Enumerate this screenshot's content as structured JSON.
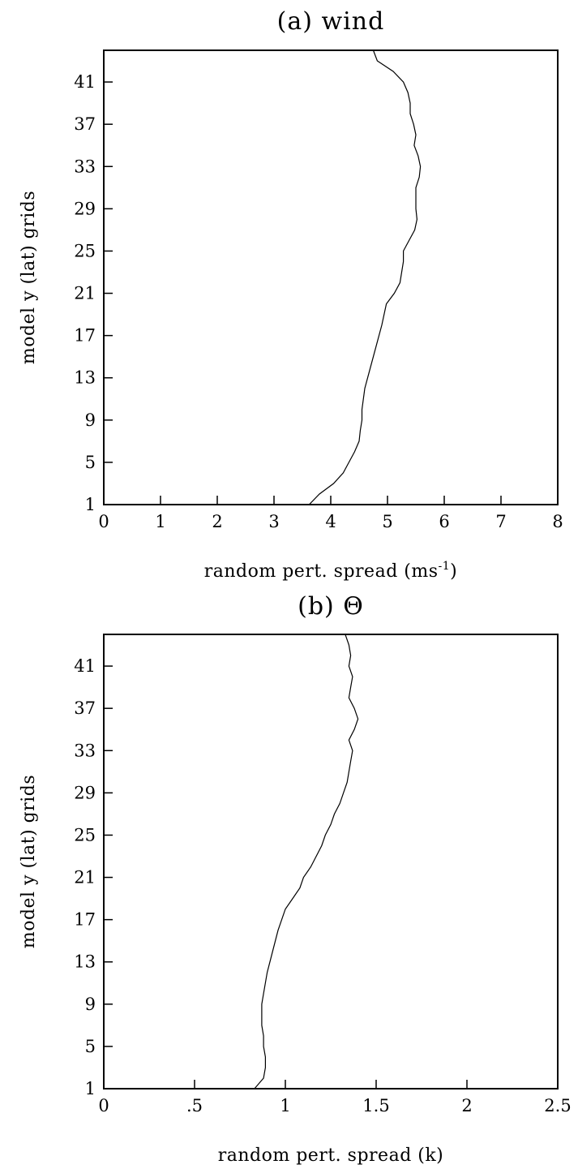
{
  "chart_data": [
    {
      "type": "line",
      "title": "(a) wind",
      "xlabel": "random pert. spread (ms",
      "xlabel_sup": "-1",
      "xlabel_tail": ")",
      "ylabel": "model y (lat) grids",
      "xlim": [
        0,
        8
      ],
      "ylim": [
        1,
        44
      ],
      "x_ticks": [
        0,
        1,
        2,
        3,
        4,
        5,
        6,
        7,
        8
      ],
      "x_tick_labels": [
        "0",
        "1",
        "2",
        "3",
        "4",
        "5",
        "6",
        "7",
        "8"
      ],
      "y_ticks": [
        1,
        5,
        9,
        13,
        17,
        21,
        25,
        29,
        33,
        37,
        41
      ],
      "y_tick_labels": [
        "1",
        "5",
        "9",
        "13",
        "17",
        "21",
        "25",
        "29",
        "33",
        "37",
        "41"
      ],
      "series": [
        {
          "x": [
            3.62,
            3.8,
            4.05,
            4.22,
            4.32,
            4.42,
            4.5,
            4.52,
            4.55,
            4.55,
            4.6,
            4.7,
            4.8,
            4.9,
            4.98,
            5.12,
            5.22,
            5.25,
            5.28,
            5.28,
            5.38,
            5.48,
            5.52,
            5.5,
            5.5,
            5.5,
            5.56,
            5.58,
            5.54,
            5.47,
            5.5,
            5.46,
            5.4,
            5.4,
            5.36,
            5.28,
            5.1,
            4.82,
            4.75
          ],
          "y": [
            1,
            2,
            3,
            4,
            5,
            6,
            7,
            8,
            9,
            10,
            12,
            14,
            16,
            18,
            20,
            21,
            22,
            23,
            24,
            25,
            26,
            27,
            28,
            29,
            30,
            31,
            32,
            33,
            34,
            35,
            36,
            37,
            38,
            39,
            40,
            41,
            42,
            43,
            44
          ]
        }
      ]
    },
    {
      "type": "line",
      "title": "(b) Θ",
      "xlabel": "random pert. spread (k)",
      "xlabel_sup": "",
      "xlabel_tail": "",
      "ylabel": "model y (lat) grids",
      "xlim": [
        0,
        2.5
      ],
      "ylim": [
        1,
        44
      ],
      "x_ticks": [
        0,
        0.5,
        1,
        1.5,
        2,
        2.5
      ],
      "x_tick_labels": [
        "0",
        ".5",
        "1",
        "1.5",
        "2",
        "2.5"
      ],
      "y_ticks": [
        1,
        5,
        9,
        13,
        17,
        21,
        25,
        29,
        33,
        37,
        41
      ],
      "y_tick_labels": [
        "1",
        "5",
        "9",
        "13",
        "17",
        "21",
        "25",
        "29",
        "33",
        "37",
        "41"
      ],
      "series": [
        {
          "x": [
            0.83,
            0.88,
            0.89,
            0.89,
            0.88,
            0.88,
            0.87,
            0.87,
            0.87,
            0.88,
            0.9,
            0.93,
            0.96,
            1.0,
            1.04,
            1.08,
            1.1,
            1.14,
            1.2,
            1.22,
            1.25,
            1.27,
            1.3,
            1.32,
            1.34,
            1.35,
            1.36,
            1.37,
            1.35,
            1.38,
            1.4,
            1.38,
            1.35,
            1.36,
            1.37,
            1.35,
            1.36,
            1.35,
            1.33,
            1.28,
            1.22
          ],
          "y": [
            1,
            2,
            3,
            4,
            5,
            6,
            7,
            8,
            9,
            10,
            12,
            14,
            16,
            18,
            19,
            20,
            21,
            22,
            24,
            25,
            26,
            27,
            28,
            29,
            30,
            31,
            32,
            33,
            34,
            35,
            36,
            37,
            38,
            39,
            40,
            41,
            42,
            43,
            44,
            44.5,
            45
          ]
        }
      ]
    }
  ]
}
